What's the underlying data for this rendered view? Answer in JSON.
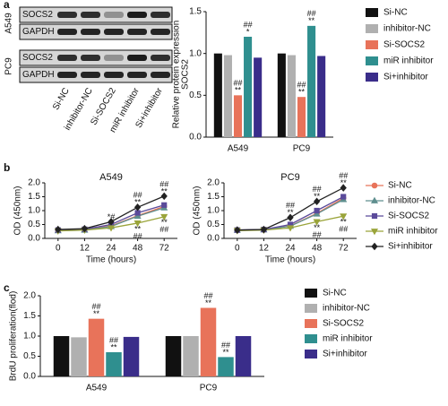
{
  "chart_data": [
    {
      "type": "blot",
      "panel_label": "a",
      "cell_lines": [
        "A549",
        "PC9"
      ],
      "rows": [
        "SOCS2",
        "GAPDH"
      ],
      "lanes": [
        "Si-NC",
        "inhibitor-NC",
        "Si-SOCS2",
        "miR inhibitor",
        "Si+inhibitor"
      ]
    },
    {
      "type": "bar",
      "ylabel": [
        "Relative protein expression",
        "SOCS2"
      ],
      "categories": [
        "A549",
        "PC9"
      ],
      "ylim": [
        0,
        1.5
      ],
      "yticks": [
        {
          "value": 0,
          "label": "0.0"
        },
        0.5,
        {
          "value": 1,
          "label": "1.0"
        },
        1.5
      ],
      "legend": "right",
      "series": [
        {
          "name": "Si-NC",
          "color": "#111111",
          "values": [
            1.0,
            1.0
          ],
          "annotations": [
            null,
            null
          ]
        },
        {
          "name": "inhibitor-NC",
          "color": "#b0b0b0",
          "values": [
            0.98,
            0.98
          ],
          "annotations": [
            null,
            null
          ]
        },
        {
          "name": "Si-SOCS2",
          "color": "#e8735a",
          "values": [
            0.5,
            0.48
          ],
          "annotations": [
            [
              "##",
              "**"
            ],
            [
              "##",
              "**"
            ]
          ]
        },
        {
          "name": "miR inhibitor",
          "color": "#2f8f8f",
          "values": [
            1.2,
            1.33
          ],
          "annotations": [
            [
              "##",
              "*"
            ],
            [
              "##",
              "**"
            ]
          ]
        },
        {
          "name": "Si+inhibitor",
          "color": "#3a2d8a",
          "values": [
            0.95,
            0.97
          ],
          "annotations": [
            null,
            null
          ]
        }
      ]
    },
    {
      "type": "line",
      "panel_label": "b",
      "title": "A549",
      "xlabel": "Time (hours)",
      "ylabel": "OD (450nm)",
      "categories": [
        "0",
        "12",
        "24",
        "48",
        "72"
      ],
      "ylim": [
        0,
        2
      ],
      "yticks": [
        {
          "value": 0,
          "label": "0.0"
        },
        0.5,
        {
          "value": 1,
          "label": "1.0"
        },
        1.5,
        {
          "value": 2,
          "label": "2.0"
        }
      ],
      "series": [
        {
          "color": "#e8735a",
          "marker": "circle",
          "values": [
            0.29,
            0.31,
            0.45,
            0.82,
            1.15
          ],
          "annotations": [
            null,
            null,
            null,
            null,
            null
          ]
        },
        {
          "color": "#5f8f8f",
          "marker": "triangle",
          "values": [
            0.28,
            0.3,
            0.43,
            0.8,
            1.1
          ],
          "annotations": [
            null,
            null,
            null,
            null,
            null
          ]
        },
        {
          "color": "#5b4a9a",
          "marker": "square",
          "values": [
            0.3,
            0.33,
            0.5,
            0.92,
            1.2
          ],
          "annotations": [
            null,
            null,
            null,
            null,
            null
          ]
        },
        {
          "color": "#9aa43a",
          "marker": "triangle-down",
          "values": [
            0.27,
            0.3,
            0.38,
            0.55,
            0.78
          ],
          "annotations": [
            null,
            null,
            null,
            [
              "**",
              "##"
            ],
            [
              "**",
              "##"
            ]
          ]
        },
        {
          "color": "#222222",
          "marker": "diamond",
          "values": [
            0.32,
            0.35,
            0.6,
            1.12,
            1.52
          ],
          "annotations": [
            null,
            null,
            [
              "*#"
            ],
            [
              "##",
              "**"
            ],
            [
              "##",
              "**"
            ]
          ]
        }
      ]
    },
    {
      "type": "line",
      "title": "PC9",
      "xlabel": "Time (hours)",
      "ylabel": "OD (450nm)",
      "categories": [
        "0",
        "12",
        "24",
        "48",
        "72"
      ],
      "ylim": [
        0,
        2
      ],
      "legend": "right",
      "yticks": [
        {
          "value": 0,
          "label": "0.0"
        },
        0.5,
        {
          "value": 1,
          "label": "1.0"
        },
        1.5,
        {
          "value": 2,
          "label": "2.0"
        }
      ],
      "series": [
        {
          "name": "Si-NC",
          "color": "#e8735a",
          "marker": "circle",
          "values": [
            0.3,
            0.31,
            0.45,
            0.9,
            1.45
          ],
          "annotations": [
            null,
            null,
            null,
            null,
            null
          ]
        },
        {
          "name": "inhibitor-NC",
          "color": "#5f8f8f",
          "marker": "triangle",
          "values": [
            0.3,
            0.31,
            0.44,
            0.88,
            1.4
          ],
          "annotations": [
            null,
            null,
            null,
            null,
            null
          ]
        },
        {
          "name": "Si-SOCS2",
          "color": "#5b4a9a",
          "marker": "square",
          "values": [
            0.3,
            0.32,
            0.5,
            1.0,
            1.5
          ],
          "annotations": [
            null,
            null,
            null,
            null,
            null
          ]
        },
        {
          "name": "miR inhibitor",
          "color": "#9aa43a",
          "marker": "triangle-down",
          "values": [
            0.28,
            0.3,
            0.38,
            0.6,
            0.8
          ],
          "annotations": [
            null,
            null,
            null,
            [
              "**",
              "##"
            ],
            [
              "**",
              "##"
            ]
          ]
        },
        {
          "name": "Si+inhibitor",
          "color": "#222222",
          "marker": "diamond",
          "values": [
            0.3,
            0.32,
            0.75,
            1.33,
            1.82
          ],
          "annotations": [
            null,
            null,
            [
              "##",
              "**"
            ],
            [
              "##",
              "**"
            ],
            [
              "##",
              "**"
            ]
          ]
        }
      ]
    },
    {
      "type": "bar",
      "panel_label": "c",
      "ylabel": "BrdU proliferation(flod)",
      "categories": [
        "A549",
        "PC9"
      ],
      "ylim": [
        0,
        2
      ],
      "yticks": [
        {
          "value": 0,
          "label": "0.0"
        },
        0.5,
        {
          "value": 1,
          "label": "1.0"
        },
        1.5,
        {
          "value": 2,
          "label": "2.0"
        }
      ],
      "legend": "right",
      "series": [
        {
          "name": "Si-NC",
          "color": "#111111",
          "values": [
            1.0,
            1.0
          ],
          "annotations": [
            null,
            null
          ]
        },
        {
          "name": "inhibitor-NC",
          "color": "#b0b0b0",
          "values": [
            0.97,
            1.0
          ],
          "annotations": [
            null,
            null
          ]
        },
        {
          "name": "Si-SOCS2",
          "color": "#e8735a",
          "values": [
            1.43,
            1.7
          ],
          "annotations": [
            [
              "##",
              "**"
            ],
            [
              "##",
              "**"
            ]
          ]
        },
        {
          "name": "miR inhibitor",
          "color": "#2f8f8f",
          "values": [
            0.6,
            0.48
          ],
          "annotations": [
            [
              "##",
              "**"
            ],
            [
              "##",
              "**"
            ]
          ]
        },
        {
          "name": "Si+inhibitor",
          "color": "#3a2d8a",
          "values": [
            0.98,
            1.0
          ],
          "annotations": [
            null,
            null
          ]
        }
      ]
    }
  ]
}
